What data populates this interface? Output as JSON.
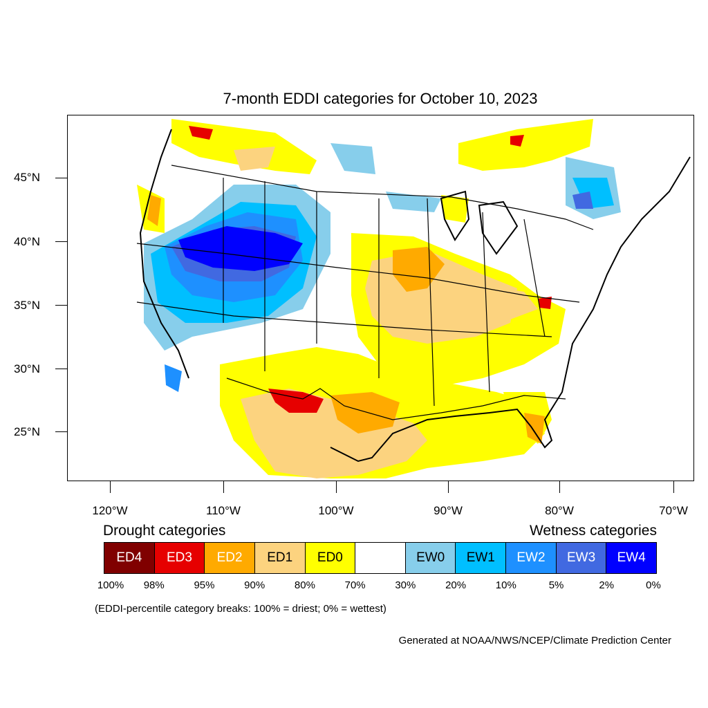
{
  "title": "7-month EDDI categories for October 10, 2023",
  "lat_labels": [
    "45°N",
    "40°N",
    "35°N",
    "30°N",
    "25°N"
  ],
  "lon_labels": [
    "120°W",
    "110°W",
    "100°W",
    "90°W",
    "80°W",
    "70°W"
  ],
  "legend": {
    "drought_heading": "Drought categories",
    "wetness_heading": "Wetness categories",
    "categories": [
      {
        "label": "ED4",
        "color": "#800000",
        "text_color": "#ffffff"
      },
      {
        "label": "ED3",
        "color": "#e60000",
        "text_color": "#ffffff"
      },
      {
        "label": "ED2",
        "color": "#ffaa00",
        "text_color": "#ffffff"
      },
      {
        "label": "ED1",
        "color": "#fcd37f",
        "text_color": "#000000"
      },
      {
        "label": "ED0",
        "color": "#ffff00",
        "text_color": "#000000"
      },
      {
        "label": "",
        "color": "#ffffff",
        "text_color": "#000000"
      },
      {
        "label": "EW0",
        "color": "#87ceeb",
        "text_color": "#000000"
      },
      {
        "label": "EW1",
        "color": "#00bfff",
        "text_color": "#000000"
      },
      {
        "label": "EW2",
        "color": "#1e90ff",
        "text_color": "#ffffff"
      },
      {
        "label": "EW3",
        "color": "#4169e1",
        "text_color": "#ffffff"
      },
      {
        "label": "EW4",
        "color": "#0000ff",
        "text_color": "#ffffff"
      }
    ],
    "breaks": [
      "100%",
      "98%",
      "95%",
      "90%",
      "80%",
      "70%",
      "30%",
      "20%",
      "10%",
      "5%",
      "2%",
      "0%"
    ]
  },
  "note": "(EDDI-percentile category breaks: 100% = driest; 0% = wettest)",
  "credit": "Generated at NOAA/NWS/NCEP/Climate Prediction Center"
}
